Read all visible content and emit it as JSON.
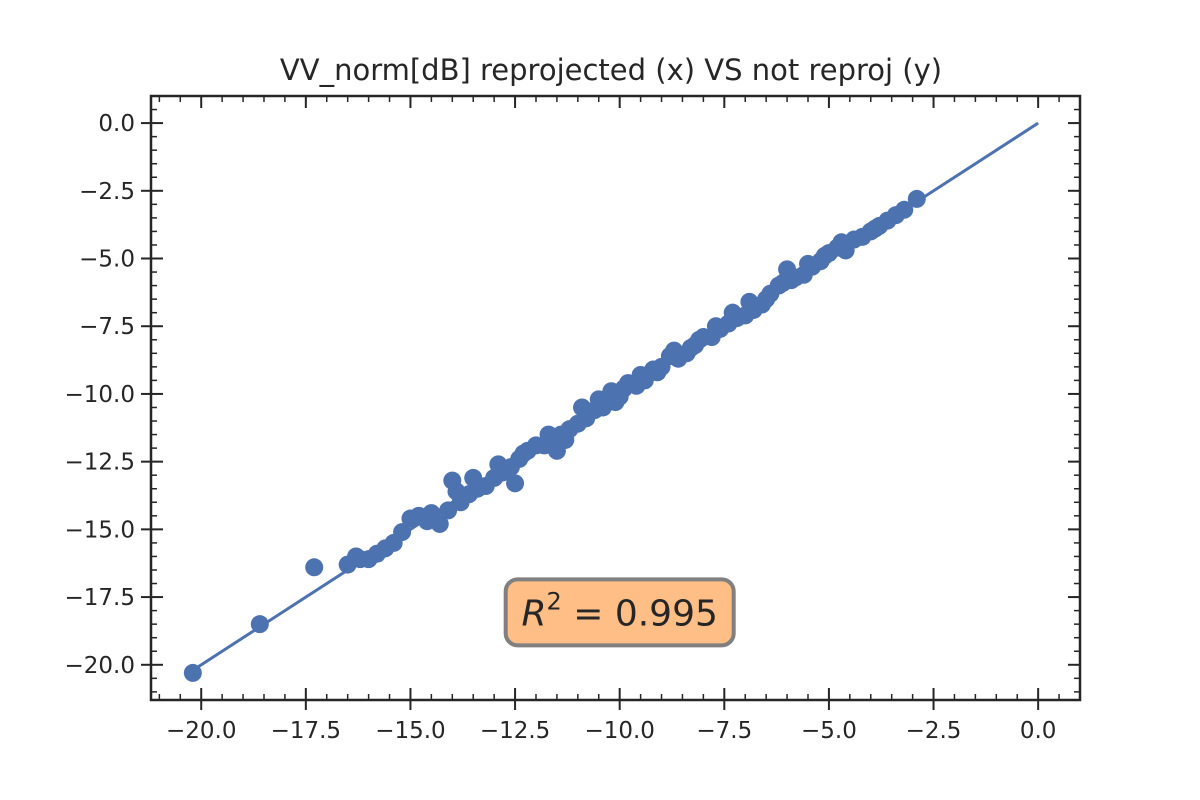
{
  "chart_data": {
    "type": "scatter",
    "title": "VV_norm[dB] reprojected (x) VS not reproj (y)",
    "xlabel": "",
    "ylabel": "",
    "xlim": [
      -21.2,
      1.0
    ],
    "ylim": [
      -21.3,
      1.0
    ],
    "x_ticks": [
      -20.0,
      -17.5,
      -15.0,
      -12.5,
      -10.0,
      -7.5,
      -5.0,
      -2.5,
      0.0
    ],
    "x_tick_labels": [
      "−20.0",
      "−17.5",
      "−15.0",
      "−12.5",
      "−10.0",
      "−7.5",
      "−5.0",
      "−2.5",
      "0.0"
    ],
    "y_ticks": [
      0.0,
      -2.5,
      -5.0,
      -7.5,
      -10.0,
      -12.5,
      -15.0,
      -17.5,
      -20.0
    ],
    "y_tick_labels": [
      "0.0",
      "−2.5",
      "−5.0",
      "−7.5",
      "−10.0",
      "−12.5",
      "−15.0",
      "−17.5",
      "−20.0"
    ],
    "grid": false,
    "fit_line": {
      "x": [
        -20.2,
        0.0
      ],
      "y": [
        -20.2,
        0.0
      ]
    },
    "annotation": {
      "text_prefix": "R",
      "text_sup": "2",
      "text_value": " = 0.995",
      "x": -10.0,
      "y": -18.1
    },
    "series": [
      {
        "color": "#4c72b0",
        "points": [
          [
            -20.2,
            -20.3
          ],
          [
            -18.6,
            -18.5
          ],
          [
            -17.3,
            -16.4
          ],
          [
            -16.5,
            -16.3
          ],
          [
            -16.2,
            -16.1
          ],
          [
            -16.0,
            -16.1
          ],
          [
            -15.8,
            -15.9
          ],
          [
            -15.6,
            -15.7
          ],
          [
            -15.4,
            -15.5
          ],
          [
            -15.0,
            -14.6
          ],
          [
            -14.8,
            -14.5
          ],
          [
            -14.6,
            -14.7
          ],
          [
            -14.3,
            -14.8
          ],
          [
            -14.1,
            -14.3
          ],
          [
            -14.0,
            -13.2
          ],
          [
            -13.8,
            -14.0
          ],
          [
            -13.6,
            -13.7
          ],
          [
            -13.4,
            -13.5
          ],
          [
            -13.2,
            -13.4
          ],
          [
            -13.0,
            -13.1
          ],
          [
            -12.8,
            -12.9
          ],
          [
            -12.6,
            -12.7
          ],
          [
            -12.5,
            -13.3
          ],
          [
            -12.4,
            -12.4
          ],
          [
            -12.2,
            -12.1
          ],
          [
            -12.0,
            -11.9
          ],
          [
            -11.8,
            -11.9
          ],
          [
            -11.6,
            -11.6
          ],
          [
            -11.4,
            -11.5
          ],
          [
            -11.2,
            -11.3
          ],
          [
            -11.0,
            -11.1
          ],
          [
            -10.8,
            -10.9
          ],
          [
            -10.6,
            -10.6
          ],
          [
            -10.4,
            -10.5
          ],
          [
            -10.2,
            -9.9
          ],
          [
            -10.0,
            -10.1
          ],
          [
            -9.8,
            -9.6
          ],
          [
            -9.6,
            -9.7
          ],
          [
            -9.4,
            -9.5
          ],
          [
            -9.2,
            -9.1
          ],
          [
            -9.0,
            -9.0
          ],
          [
            -8.8,
            -8.6
          ],
          [
            -8.6,
            -8.7
          ],
          [
            -8.4,
            -8.5
          ],
          [
            -8.2,
            -8.2
          ],
          [
            -8.0,
            -7.9
          ],
          [
            -7.8,
            -7.9
          ],
          [
            -7.6,
            -7.6
          ],
          [
            -7.4,
            -7.4
          ],
          [
            -7.2,
            -7.2
          ],
          [
            -7.0,
            -7.1
          ],
          [
            -6.8,
            -6.9
          ],
          [
            -6.6,
            -6.7
          ],
          [
            -6.4,
            -6.3
          ],
          [
            -6.2,
            -6.0
          ],
          [
            -6.0,
            -5.4
          ],
          [
            -5.8,
            -5.7
          ],
          [
            -5.6,
            -5.6
          ],
          [
            -5.4,
            -5.3
          ],
          [
            -5.2,
            -5.1
          ],
          [
            -5.0,
            -4.8
          ],
          [
            -4.8,
            -4.6
          ],
          [
            -4.6,
            -4.7
          ],
          [
            -4.4,
            -4.3
          ],
          [
            -4.2,
            -4.2
          ],
          [
            -4.0,
            -4.0
          ],
          [
            -3.8,
            -3.8
          ],
          [
            -3.6,
            -3.6
          ],
          [
            -3.4,
            -3.4
          ],
          [
            -3.2,
            -3.2
          ],
          [
            -2.9,
            -2.8
          ],
          [
            -14.5,
            -14.4
          ],
          [
            -13.9,
            -13.6
          ],
          [
            -12.9,
            -12.6
          ],
          [
            -11.7,
            -11.5
          ],
          [
            -11.3,
            -11.7
          ],
          [
            -10.9,
            -10.5
          ],
          [
            -10.5,
            -10.2
          ],
          [
            -9.9,
            -9.8
          ],
          [
            -9.5,
            -9.3
          ],
          [
            -9.1,
            -9.2
          ],
          [
            -8.7,
            -8.4
          ],
          [
            -8.3,
            -8.3
          ],
          [
            -7.7,
            -7.5
          ],
          [
            -7.3,
            -7.0
          ],
          [
            -6.9,
            -6.6
          ],
          [
            -6.5,
            -6.5
          ],
          [
            -5.9,
            -5.8
          ],
          [
            -5.5,
            -5.2
          ],
          [
            -5.1,
            -4.9
          ],
          [
            -4.7,
            -4.4
          ],
          [
            -11.5,
            -12.1
          ],
          [
            -12.3,
            -12.2
          ],
          [
            -13.5,
            -13.1
          ],
          [
            -15.2,
            -15.1
          ],
          [
            -16.3,
            -16.0
          ],
          [
            -10.1,
            -10.3
          ],
          [
            -8.1,
            -8.0
          ],
          [
            -6.1,
            -5.9
          ],
          [
            -3.9,
            -3.9
          ]
        ]
      }
    ]
  }
}
